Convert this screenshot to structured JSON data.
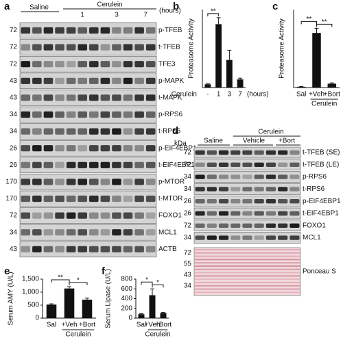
{
  "blot_a": {
    "panel": "a",
    "groups": [
      "Saline",
      "Cerulein"
    ],
    "timepoints": [
      "1",
      "3",
      "7"
    ],
    "time_unit": "(hours)",
    "rows": [
      {
        "kda": 72,
        "label": "p-TFEB"
      },
      {
        "kda": 72,
        "label": "t-TFEB"
      },
      {
        "kda": 72,
        "label": "TFE3"
      },
      {
        "kda": 43,
        "label": "p-MAPK"
      },
      {
        "kda": 43,
        "label": "t-MAPK"
      },
      {
        "kda": 34,
        "label": "p-RPS6"
      },
      {
        "kda": 34,
        "label": "t-RPS6"
      },
      {
        "kda": 26,
        "label": "p-EIF4EBP1"
      },
      {
        "kda": 26,
        "label": "t-EIF4EBP1"
      },
      {
        "kda": 170,
        "label": "p-MTOR"
      },
      {
        "kda": 170,
        "label": "t-MTOR"
      },
      {
        "kda": 72,
        "label": "FOXO1"
      },
      {
        "kda": 34,
        "label": "MCL1"
      },
      {
        "kda": 43,
        "label": "ACTB"
      }
    ]
  },
  "blot_d": {
    "panel": "d",
    "kda_label": "kDa",
    "groups": [
      "Saline",
      "Cerulein"
    ],
    "subgroups": [
      "Vehicle",
      "+Bort"
    ],
    "rows": [
      {
        "kda": 72,
        "label": "t-TFEB (SE)"
      },
      {
        "kda": 72,
        "label": "t-TFEB (LE)"
      },
      {
        "kda": 34,
        "label": "p-RPS6"
      },
      {
        "kda": 34,
        "label": "t-RPS6"
      },
      {
        "kda": 26,
        "label": "p-EIF4EBP1"
      },
      {
        "kda": 26,
        "label": "t-EIF4EBP1"
      },
      {
        "kda": 72,
        "label": "FOXO1"
      },
      {
        "kda": 34,
        "label": "MCL1"
      }
    ],
    "ponceau": {
      "label": "Ponceau S",
      "kda": [
        72,
        55,
        43,
        34
      ]
    }
  },
  "chart_data": [
    {
      "type": "bar",
      "panel": "b",
      "ylabel": "Proteasome Activity",
      "xlabel": "Cerulein",
      "xunit": "(hours)",
      "categories": [
        "-",
        "1",
        "3",
        "7"
      ],
      "values": [
        1,
        19.5,
        8.5,
        2.5
      ],
      "errors": [
        0.2,
        2,
        3,
        0.4
      ],
      "color": "#111111",
      "ylim": [
        0,
        24
      ],
      "annotations": [
        "**"
      ]
    },
    {
      "type": "bar",
      "panel": "c",
      "ylabel": "Proteasome Activity",
      "group_label": "Cerulein",
      "categories": [
        "Sal",
        "+Veh",
        "+Bort"
      ],
      "values": [
        1,
        70,
        5
      ],
      "errors": [
        0.3,
        6,
        1
      ],
      "color": "#111111",
      "ylim": [
        0,
        100
      ],
      "annotations": [
        "**",
        "**"
      ]
    },
    {
      "type": "bar",
      "panel": "e",
      "ylabel": "Serum AMY (U/L)",
      "group_label": "Cerulein",
      "categories": [
        "Sal",
        "+Veh",
        "+Bort"
      ],
      "values": [
        520,
        1140,
        710
      ],
      "errors": [
        30,
        70,
        60
      ],
      "color": "#111111",
      "ylim": [
        0,
        1500
      ],
      "yticks": [
        0,
        500,
        {
          "value": 1000,
          "label": "1,000"
        },
        {
          "value": 1500,
          "label": "1,500"
        }
      ],
      "annotations": [
        "**",
        "*"
      ]
    },
    {
      "type": "bar",
      "panel": "f",
      "ylabel": "Serum Lipase (U/L)",
      "group_label": "Cerulein",
      "categories": [
        "Sal",
        "+Veh",
        "+Bort"
      ],
      "values": [
        80,
        470,
        105
      ],
      "errors": [
        10,
        130,
        15
      ],
      "color": "#111111",
      "ylim": [
        0,
        800
      ],
      "yticks": [
        0,
        200,
        400,
        600,
        800
      ],
      "annotations": [
        "*",
        "*"
      ]
    }
  ]
}
